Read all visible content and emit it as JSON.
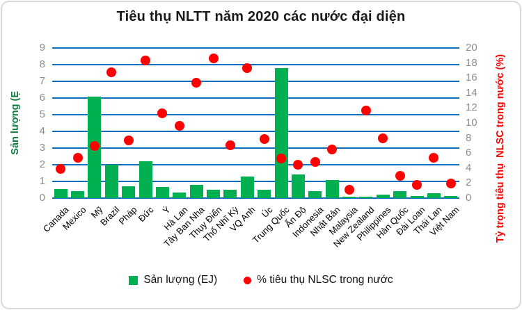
{
  "title": "Tiêu thụ NLTT năm 2020 các nước đại diện",
  "legend": {
    "bar_label": "Sản lượng (EJ)",
    "dot_label": "% tiêu thụ NLSC trong nước"
  },
  "colors": {
    "bar": "#00b050",
    "dot": "#fe0000",
    "gridline": "#0b70c0",
    "tick_text": "#8c8c8c",
    "left_axis_title": "#0e7a3f",
    "right_axis_title": "#fe0000",
    "frame_border": "#d9d9d9"
  },
  "chart_data": {
    "type": "bar",
    "subtype": "combo bar + scatter, dual axis",
    "title": "Tiêu thụ NLTT năm 2020 các nước đại diện",
    "grid": "horizontal blue gridlines at every left-axis unit",
    "legend_position": "bottom",
    "categories": [
      "Canada",
      "Mexico",
      "Mỹ",
      "Brazil",
      "Pháp",
      "Đức",
      "Ý",
      "Hà Lan",
      "Tây Ban Nha",
      "Thụy Điển",
      "Thổ Nhĩ Kỳ",
      "VQ Anh",
      "Úc",
      "Trung Quốc",
      "Ấn Độ",
      "Indonesia",
      "Nhật Bản",
      "Malaysia",
      "New Zealand",
      "Philippines",
      "Hàn Quốc",
      "Đài Loan",
      "Thái Lan",
      "Việt Nam"
    ],
    "series": [
      {
        "name": "Sản lượng (EJ)",
        "type": "bar",
        "axis": "left",
        "color": "#00b050",
        "values": [
          0.55,
          0.4,
          6.1,
          2.0,
          0.7,
          2.2,
          0.65,
          0.35,
          0.8,
          0.5,
          0.5,
          1.3,
          0.5,
          7.8,
          1.4,
          0.4,
          1.1,
          0.1,
          0.1,
          0.2,
          0.4,
          0.13,
          0.3,
          0.13
        ]
      },
      {
        "name": "% tiêu thụ NLSC trong nước",
        "type": "scatter",
        "axis": "right",
        "color": "#fe0000",
        "values": [
          3.9,
          5.4,
          6.9,
          16.8,
          7.7,
          18.3,
          11.3,
          9.6,
          15.4,
          18.6,
          7.0,
          17.3,
          7.9,
          5.3,
          4.4,
          4.8,
          6.5,
          1.1,
          11.7,
          8.0,
          3.0,
          1.8,
          5.4,
          1.9
        ]
      }
    ],
    "left_axis": {
      "title": "Sản lượng (Ẹ",
      "min": 0,
      "max": 9,
      "step": 1,
      "ticks": [
        9,
        8,
        7,
        6,
        5,
        4,
        3,
        2,
        1,
        0
      ]
    },
    "right_axis": {
      "title": "Tỷ trọng tiêu thụ  NLSC trong nước (%)",
      "min": 0,
      "max": 20,
      "step": 2,
      "ticks": [
        20,
        18,
        16,
        14,
        12,
        10,
        8,
        6,
        4,
        2,
        0
      ]
    }
  }
}
